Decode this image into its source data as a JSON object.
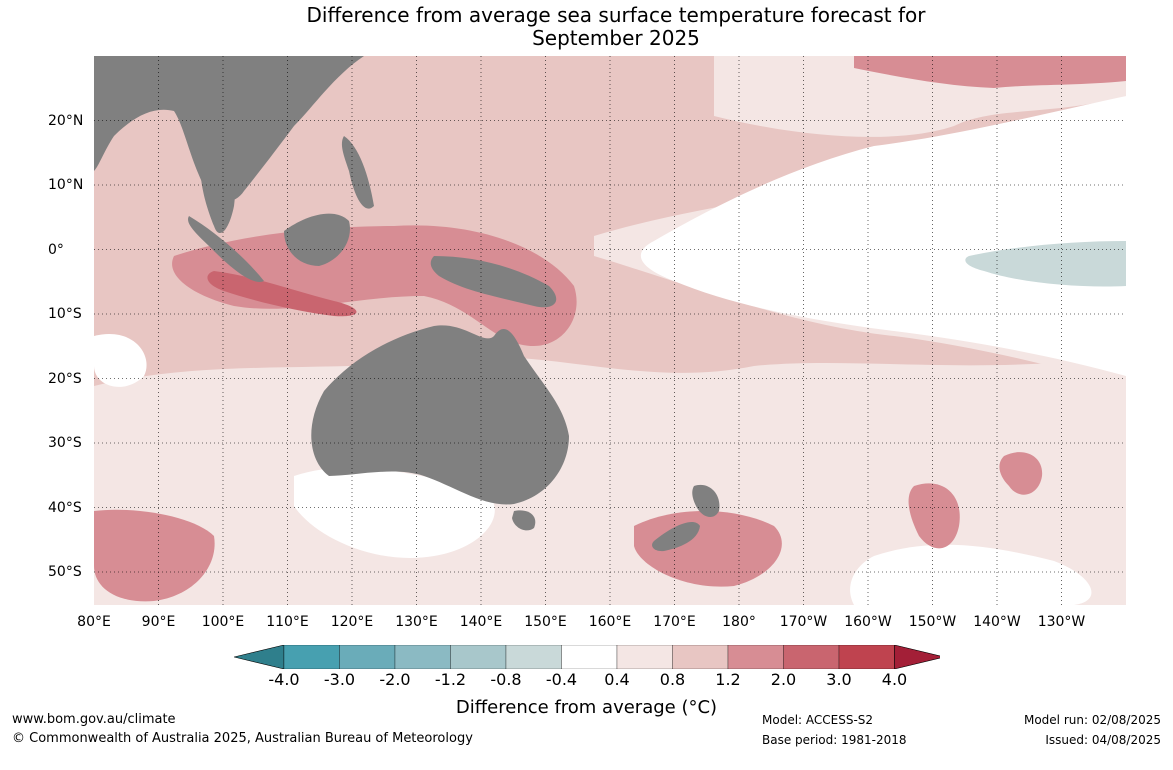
{
  "title": {
    "line1": "Difference from average sea surface temperature forecast for",
    "line2": "September 2025"
  },
  "map": {
    "region": "Indo-Pacific",
    "lon_labels": [
      "80°E",
      "90°E",
      "100°E",
      "110°E",
      "120°E",
      "130°E",
      "140°E",
      "150°E",
      "160°E",
      "170°E",
      "180°",
      "170°W",
      "160°W",
      "150°W",
      "140°W",
      "130°W"
    ],
    "lat_labels": [
      "20°N",
      "10°N",
      "0°",
      "10°S",
      "20°S",
      "30°S",
      "40°S",
      "50°S"
    ],
    "land_color": "#808080",
    "gridlines": true
  },
  "colorbar": {
    "label": "Difference from average (°C)",
    "ticks": [
      "-4.0",
      "-3.0",
      "-2.0",
      "-1.2",
      "-0.8",
      "-0.4",
      "0.4",
      "0.8",
      "1.2",
      "2.0",
      "3.0",
      "4.0"
    ],
    "colors": [
      "#2f7f8c",
      "#47a0b0",
      "#6aacb9",
      "#8bbac3",
      "#a8c7cb",
      "#c9d9d9",
      "#ffffff",
      "#f4e6e4",
      "#e8c6c3",
      "#d78d94",
      "#c9656f",
      "#bf434f",
      "#a31f37"
    ],
    "extend": "both"
  },
  "footer": {
    "website": "www.bom.gov.au/climate",
    "copyright": "© Commonwealth of Australia 2025, Australian Bureau of Meteorology",
    "model": "Model: ACCESS-S2",
    "base_period": "Base period: 1981-2018",
    "model_run": "Model run: 02/08/2025",
    "issued": "Issued: 04/08/2025"
  }
}
